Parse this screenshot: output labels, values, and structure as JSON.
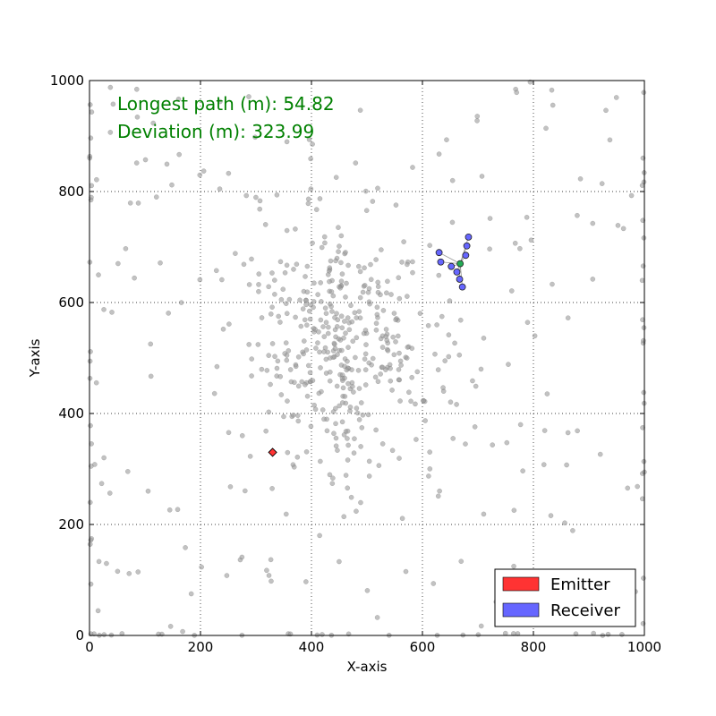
{
  "chart_data": {
    "type": "scatter",
    "xlabel": "X-axis",
    "ylabel": "Y-axis",
    "xlim": [
      0,
      1000
    ],
    "ylim": [
      0,
      1000
    ],
    "xticks": [
      "0",
      "200",
      "400",
      "600",
      "800",
      "1000"
    ],
    "yticks": [
      "0",
      "200",
      "400",
      "600",
      "800",
      "1000"
    ],
    "grid": true,
    "grid_style": "dotted",
    "legend_position": "lower-right",
    "annotations": [
      {
        "text": "Longest path (m): 54.82",
        "x": 50,
        "y": 950,
        "color": "#008000"
      },
      {
        "text": "Deviation (m): 323.99",
        "x": 50,
        "y": 900,
        "color": "#008000"
      }
    ],
    "legend": [
      {
        "label": "Emitter",
        "color": "#ff3333"
      },
      {
        "label": "Receiver",
        "color": "#6666ff"
      }
    ],
    "emitter": {
      "x": 330,
      "y": 330,
      "color": "#ff3333"
    },
    "receivers": {
      "color": "#6666ff",
      "hub": {
        "x": 668,
        "y": 670,
        "color": "#22aa55"
      },
      "points": [
        {
          "x": 630,
          "y": 690
        },
        {
          "x": 633,
          "y": 673
        },
        {
          "x": 652,
          "y": 665
        },
        {
          "x": 662,
          "y": 655
        },
        {
          "x": 667,
          "y": 642
        },
        {
          "x": 672,
          "y": 628
        },
        {
          "x": 678,
          "y": 685
        },
        {
          "x": 680,
          "y": 702
        },
        {
          "x": 683,
          "y": 718
        }
      ]
    },
    "background_points": {
      "color": "#999999",
      "count": 650,
      "cluster_center": [
        460,
        520
      ],
      "cluster_spread": [
        75,
        105
      ],
      "note": ""
    }
  }
}
